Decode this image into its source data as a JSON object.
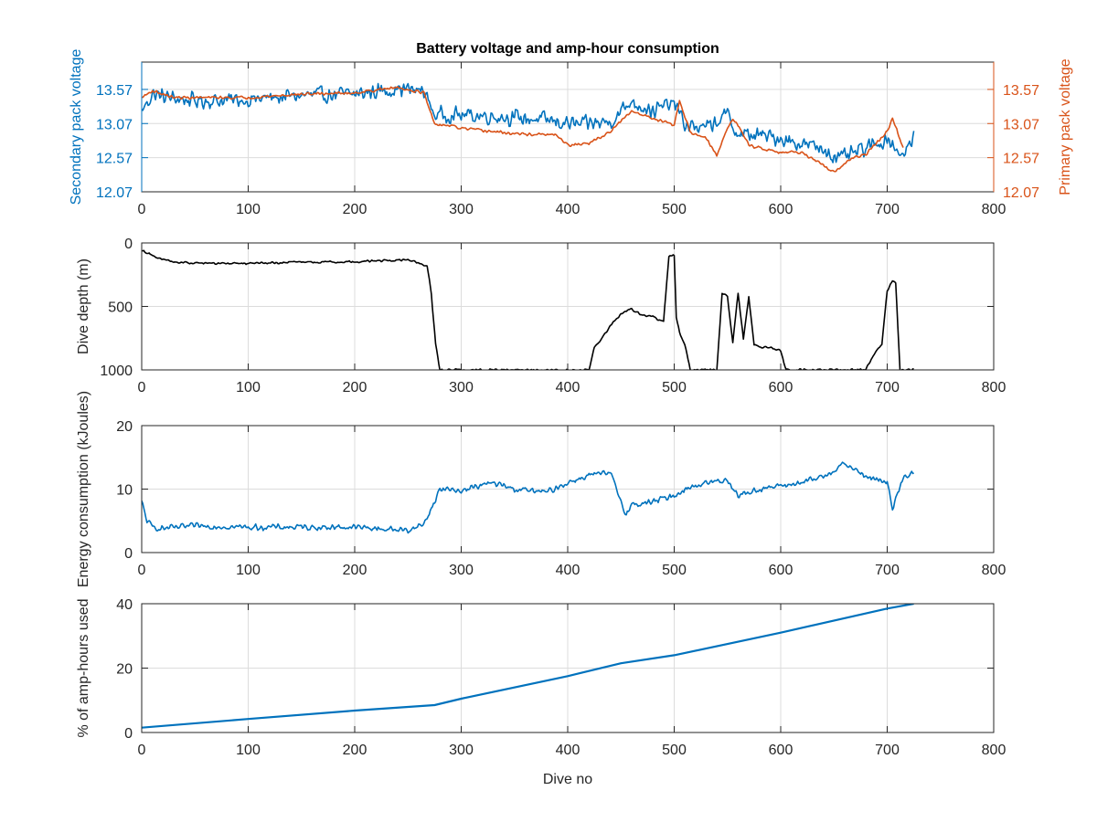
{
  "chart_data": [
    {
      "type": "line",
      "title": "Battery voltage and amp-hour consumption",
      "xlabel": "",
      "ylabel_left": "Secondary pack voltage",
      "ylabel_right": "Primary pack voltage",
      "xlim": [
        0,
        800
      ],
      "ylim": [
        12.07,
        13.97
      ],
      "xticks": [
        "0",
        "100",
        "200",
        "300",
        "400",
        "500",
        "600",
        "700",
        "800"
      ],
      "yticks": [
        "12.07",
        "12.57",
        "13.07",
        "13.57"
      ],
      "yticks_right": [
        "12.07",
        "12.57",
        "13.07",
        "13.57"
      ],
      "grid": true,
      "colors": {
        "left": "#0072BD",
        "right": "#D95319"
      },
      "series": [
        {
          "axis": "left",
          "color": "#0072BD",
          "x": [
            0,
            10,
            25,
            50,
            100,
            150,
            200,
            240,
            265,
            275,
            290,
            330,
            380,
            410,
            440,
            460,
            480,
            500,
            510,
            530,
            550,
            560,
            580,
            600,
            640,
            655,
            680,
            700,
            715,
            725
          ],
          "y": [
            13.25,
            13.5,
            13.45,
            13.4,
            13.42,
            13.48,
            13.5,
            13.58,
            13.55,
            13.2,
            13.2,
            13.18,
            13.12,
            13.05,
            13.1,
            13.4,
            13.25,
            13.38,
            13.05,
            13.0,
            13.2,
            12.9,
            12.9,
            12.85,
            12.7,
            12.55,
            12.7,
            12.85,
            12.6,
            12.85
          ],
          "noise": 0.14
        },
        {
          "axis": "right",
          "color": "#D95319",
          "x": [
            0,
            10,
            30,
            100,
            150,
            200,
            240,
            265,
            275,
            285,
            300,
            350,
            390,
            400,
            420,
            440,
            460,
            480,
            500,
            505,
            515,
            530,
            540,
            550,
            555,
            560,
            570,
            600,
            620,
            640,
            650,
            665,
            680,
            700,
            705,
            715
          ],
          "y": [
            13.45,
            13.55,
            13.45,
            13.45,
            13.5,
            13.52,
            13.6,
            13.52,
            13.05,
            13.05,
            13.0,
            12.92,
            12.9,
            12.75,
            12.78,
            12.95,
            13.25,
            13.15,
            13.05,
            13.4,
            12.95,
            12.85,
            12.6,
            13.0,
            13.15,
            13.05,
            12.75,
            12.65,
            12.65,
            12.45,
            12.35,
            12.55,
            12.62,
            12.95,
            13.15,
            12.7
          ],
          "noise": 0.025
        }
      ]
    },
    {
      "type": "line",
      "title": "",
      "xlabel": "",
      "ylabel": "Dive depth (m)",
      "xlim": [
        0,
        800
      ],
      "ylim": [
        0,
        1000
      ],
      "y_reversed": true,
      "xticks": [
        "0",
        "100",
        "200",
        "300",
        "400",
        "500",
        "600",
        "700",
        "800"
      ],
      "yticks": [
        "0",
        "500",
        "1000"
      ],
      "grid": true,
      "series": [
        {
          "color": "#000000",
          "x": [
            0,
            10,
            30,
            60,
            100,
            150,
            200,
            250,
            268,
            272,
            276,
            280,
            300,
            350,
            400,
            420,
            425,
            430,
            440,
            450,
            460,
            470,
            480,
            490,
            495,
            500,
            502,
            505,
            510,
            515,
            520,
            540,
            545,
            550,
            555,
            560,
            565,
            570,
            575,
            580,
            590,
            600,
            605,
            610,
            620,
            660,
            680,
            690,
            695,
            700,
            705,
            708,
            712,
            716,
            720,
            725
          ],
          "y": [
            60,
            100,
            150,
            160,
            160,
            150,
            150,
            130,
            180,
            400,
            800,
            1000,
            1000,
            1000,
            1000,
            1000,
            820,
            780,
            650,
            560,
            520,
            570,
            580,
            620,
            110,
            100,
            580,
            700,
            800,
            1000,
            1000,
            1000,
            400,
            420,
            780,
            400,
            760,
            420,
            800,
            820,
            820,
            850,
            1000,
            1000,
            1000,
            1000,
            1000,
            840,
            800,
            380,
            300,
            320,
            1000,
            1000,
            1000,
            1000
          ],
          "noise": 10
        }
      ]
    },
    {
      "type": "line",
      "title": "",
      "xlabel": "",
      "ylabel": "Energy consumption (kJoules)",
      "xlim": [
        0,
        800
      ],
      "ylim": [
        0,
        20
      ],
      "xticks": [
        "0",
        "100",
        "200",
        "300",
        "400",
        "500",
        "600",
        "700",
        "800"
      ],
      "yticks": [
        "0",
        "10",
        "20"
      ],
      "grid": true,
      "series": [
        {
          "color": "#0072BD",
          "x": [
            0,
            5,
            10,
            20,
            50,
            100,
            150,
            200,
            250,
            265,
            275,
            280,
            300,
            330,
            350,
            380,
            400,
            420,
            440,
            455,
            460,
            480,
            500,
            510,
            530,
            550,
            560,
            580,
            600,
            620,
            640,
            660,
            680,
            700,
            705,
            715,
            725
          ],
          "y": [
            8,
            5,
            4,
            3.8,
            4.2,
            4,
            4,
            4,
            3.5,
            4.5,
            8,
            10,
            9.8,
            11,
            10,
            9.5,
            11,
            12.2,
            12.5,
            6,
            7.5,
            8,
            9,
            10,
            11,
            11.5,
            9,
            10,
            10.5,
            11,
            12,
            14,
            12,
            11,
            7,
            12,
            12.5
          ],
          "noise": 0.55
        }
      ]
    },
    {
      "type": "line",
      "title": "",
      "xlabel": "Dive no",
      "ylabel": "% of amp-hours used",
      "xlim": [
        0,
        800
      ],
      "ylim": [
        0,
        40
      ],
      "xticks": [
        "0",
        "100",
        "200",
        "300",
        "400",
        "500",
        "600",
        "700",
        "800"
      ],
      "yticks": [
        "0",
        "20",
        "40"
      ],
      "grid": true,
      "series": [
        {
          "color": "#0072BD",
          "x": [
            0,
            100,
            200,
            275,
            300,
            400,
            450,
            500,
            600,
            700,
            725
          ],
          "y": [
            1.5,
            4.2,
            6.8,
            8.5,
            10.5,
            17.5,
            21.5,
            24,
            31,
            38.5,
            40
          ]
        }
      ]
    }
  ]
}
